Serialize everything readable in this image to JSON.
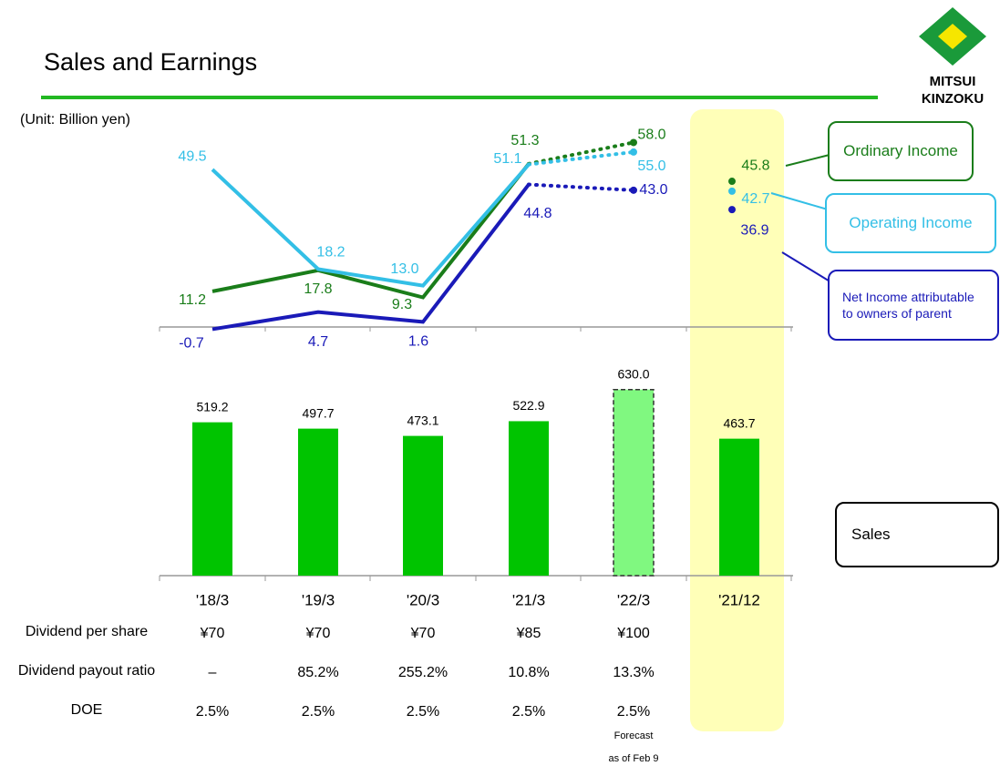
{
  "header": {
    "title": "Sales and Earnings",
    "unit": "(Unit: Billion yen)",
    "logo": [
      "MITSUI",
      "KINZOKU"
    ]
  },
  "chart_data": [
    {
      "type": "line",
      "series": [
        {
          "name": "Ordinary Income",
          "color": "#1a7d1a",
          "values": [
            11.2,
            17.8,
            9.3,
            51.3,
            58.0,
            45.8
          ],
          "value_labels": [
            "11.2",
            "17.8",
            "9.3",
            "51.3",
            "58.0",
            "45.8"
          ]
        },
        {
          "name": "Operating Income",
          "color": "#33bfe6",
          "values": [
            49.5,
            18.2,
            13.0,
            51.1,
            55.0,
            42.7
          ],
          "value_labels": [
            "49.5",
            "18.2",
            "13.0",
            "51.1",
            "55.0",
            "42.7"
          ]
        },
        {
          "name": "Net Income attributable to owners of parent",
          "color": "#1a1ab8",
          "values": [
            -0.7,
            4.7,
            1.6,
            44.8,
            43.0,
            36.9
          ],
          "value_labels": [
            "-0.7",
            "4.7",
            "1.6",
            "44.8",
            "43.0",
            "36.9"
          ]
        }
      ],
      "ylim": [
        -2,
        65
      ],
      "forecast": [
        false,
        false,
        false,
        false,
        true,
        false
      ],
      "highlight": [
        false,
        false,
        false,
        false,
        false,
        true
      ]
    },
    {
      "type": "bar",
      "categories": [
        "'18/3",
        "'19/3",
        "'20/3",
        "'21/3",
        "'22/3",
        "'21/12"
      ],
      "series": [
        {
          "name": "Sales",
          "color": "#00c400",
          "values": [
            519.2,
            497.7,
            473.1,
            522.9,
            630.0,
            463.7
          ],
          "value_labels": [
            "519.2",
            "497.7",
            "473.1",
            "522.9",
            "630.0",
            "463.7"
          ]
        }
      ],
      "forecast_color": "#80f880",
      "ylim": [
        0,
        700
      ],
      "forecast": [
        false,
        false,
        false,
        false,
        true,
        false
      ],
      "highlight": [
        false,
        false,
        false,
        false,
        false,
        true
      ]
    }
  ],
  "table": {
    "rows": [
      {
        "label": "Dividend per share",
        "cells": [
          "¥70",
          "¥70",
          "¥70",
          "¥85",
          "¥100"
        ]
      },
      {
        "label": "Dividend payout ratio",
        "cells": [
          "–",
          "85.2%",
          "255.2%",
          "10.8%",
          "13.3%"
        ]
      },
      {
        "label": "DOE",
        "cells": [
          "2.5%",
          "2.5%",
          "2.5%",
          "2.5%",
          "2.5%"
        ]
      }
    ]
  },
  "notes": [
    "Forecast",
    "as of Feb 9"
  ]
}
